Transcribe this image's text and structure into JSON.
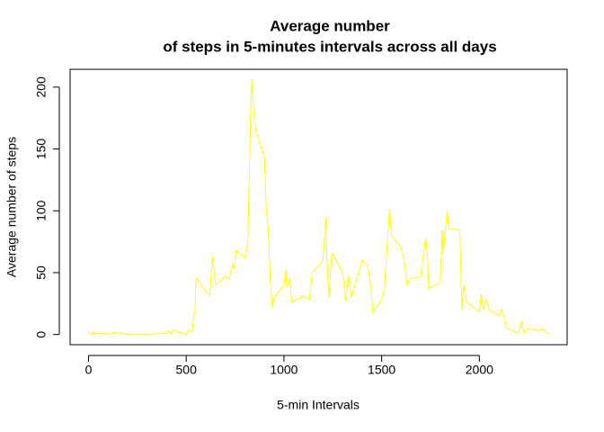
{
  "chart_data": {
    "type": "line",
    "title": [
      "Average number",
      "of steps in 5-minutes intervals across all days"
    ],
    "x_label": "5-min Intervals",
    "y_label": "Average number of steps",
    "x": [
      0,
      10,
      15,
      20,
      25,
      30,
      45,
      100,
      130,
      200,
      245,
      300,
      315,
      330,
      400,
      410,
      425,
      430,
      440,
      450,
      500,
      510,
      520,
      530,
      540,
      545,
      550,
      600,
      620,
      635,
      650,
      700,
      720,
      735,
      745,
      755,
      800,
      815,
      830,
      835,
      845,
      855,
      900,
      910,
      920,
      930,
      940,
      950,
      1000,
      1010,
      1015,
      1030,
      1040,
      1100,
      1130,
      1145,
      1200,
      1215,
      1220,
      1230,
      1245,
      1300,
      1315,
      1330,
      1345,
      1400,
      1430,
      1445,
      1455,
      1500,
      1515,
      1540,
      1550,
      1600,
      1615,
      1630,
      1645,
      1700,
      1710,
      1725,
      1735,
      1740,
      1800,
      1810,
      1815,
      1835,
      1845,
      1900,
      1910,
      1920,
      1930,
      1945,
      2000,
      2010,
      2020,
      2035,
      2050,
      2100,
      2115,
      2130,
      2140,
      2200,
      2215,
      2230,
      2250,
      2300,
      2330,
      2345,
      2355
    ],
    "series": [
      {
        "name": "steps",
        "color": "#ffff00",
        "values": [
          1.7,
          0.1,
          0.2,
          0.07,
          2.1,
          0.5,
          0.9,
          0.3,
          1.5,
          0,
          0,
          0,
          0,
          0.3,
          1.2,
          3,
          0.4,
          4,
          3,
          2.5,
          0,
          3,
          3.3,
          2.2,
          16,
          19,
          46,
          35,
          31,
          63,
          40,
          47,
          45,
          56,
          53,
          68,
          62,
          75,
          180,
          206,
          180,
          165,
          143,
          100,
          85,
          45,
          22,
          30,
          40,
          52,
          38,
          45,
          26,
          31,
          28,
          50,
          60,
          95,
          60,
          30,
          66,
          50,
          27,
          48,
          30,
          60,
          55,
          38,
          18,
          28,
          38,
          102,
          80,
          70,
          60,
          40,
          45,
          47,
          60,
          78,
          63,
          37,
          42,
          85,
          65,
          100,
          85,
          85,
          20,
          40,
          28,
          25,
          18,
          33,
          20,
          28,
          20,
          15,
          20,
          12,
          5,
          1,
          10,
          1,
          5,
          3,
          4,
          1,
          1
        ]
      }
    ],
    "xlim": [
      -94.2,
      2449.2
    ],
    "ylim": [
      -8.25,
      214.4
    ],
    "xticks": [
      0,
      500,
      1000,
      1500,
      2000
    ],
    "yticks": [
      0,
      50,
      100,
      150,
      200
    ]
  }
}
